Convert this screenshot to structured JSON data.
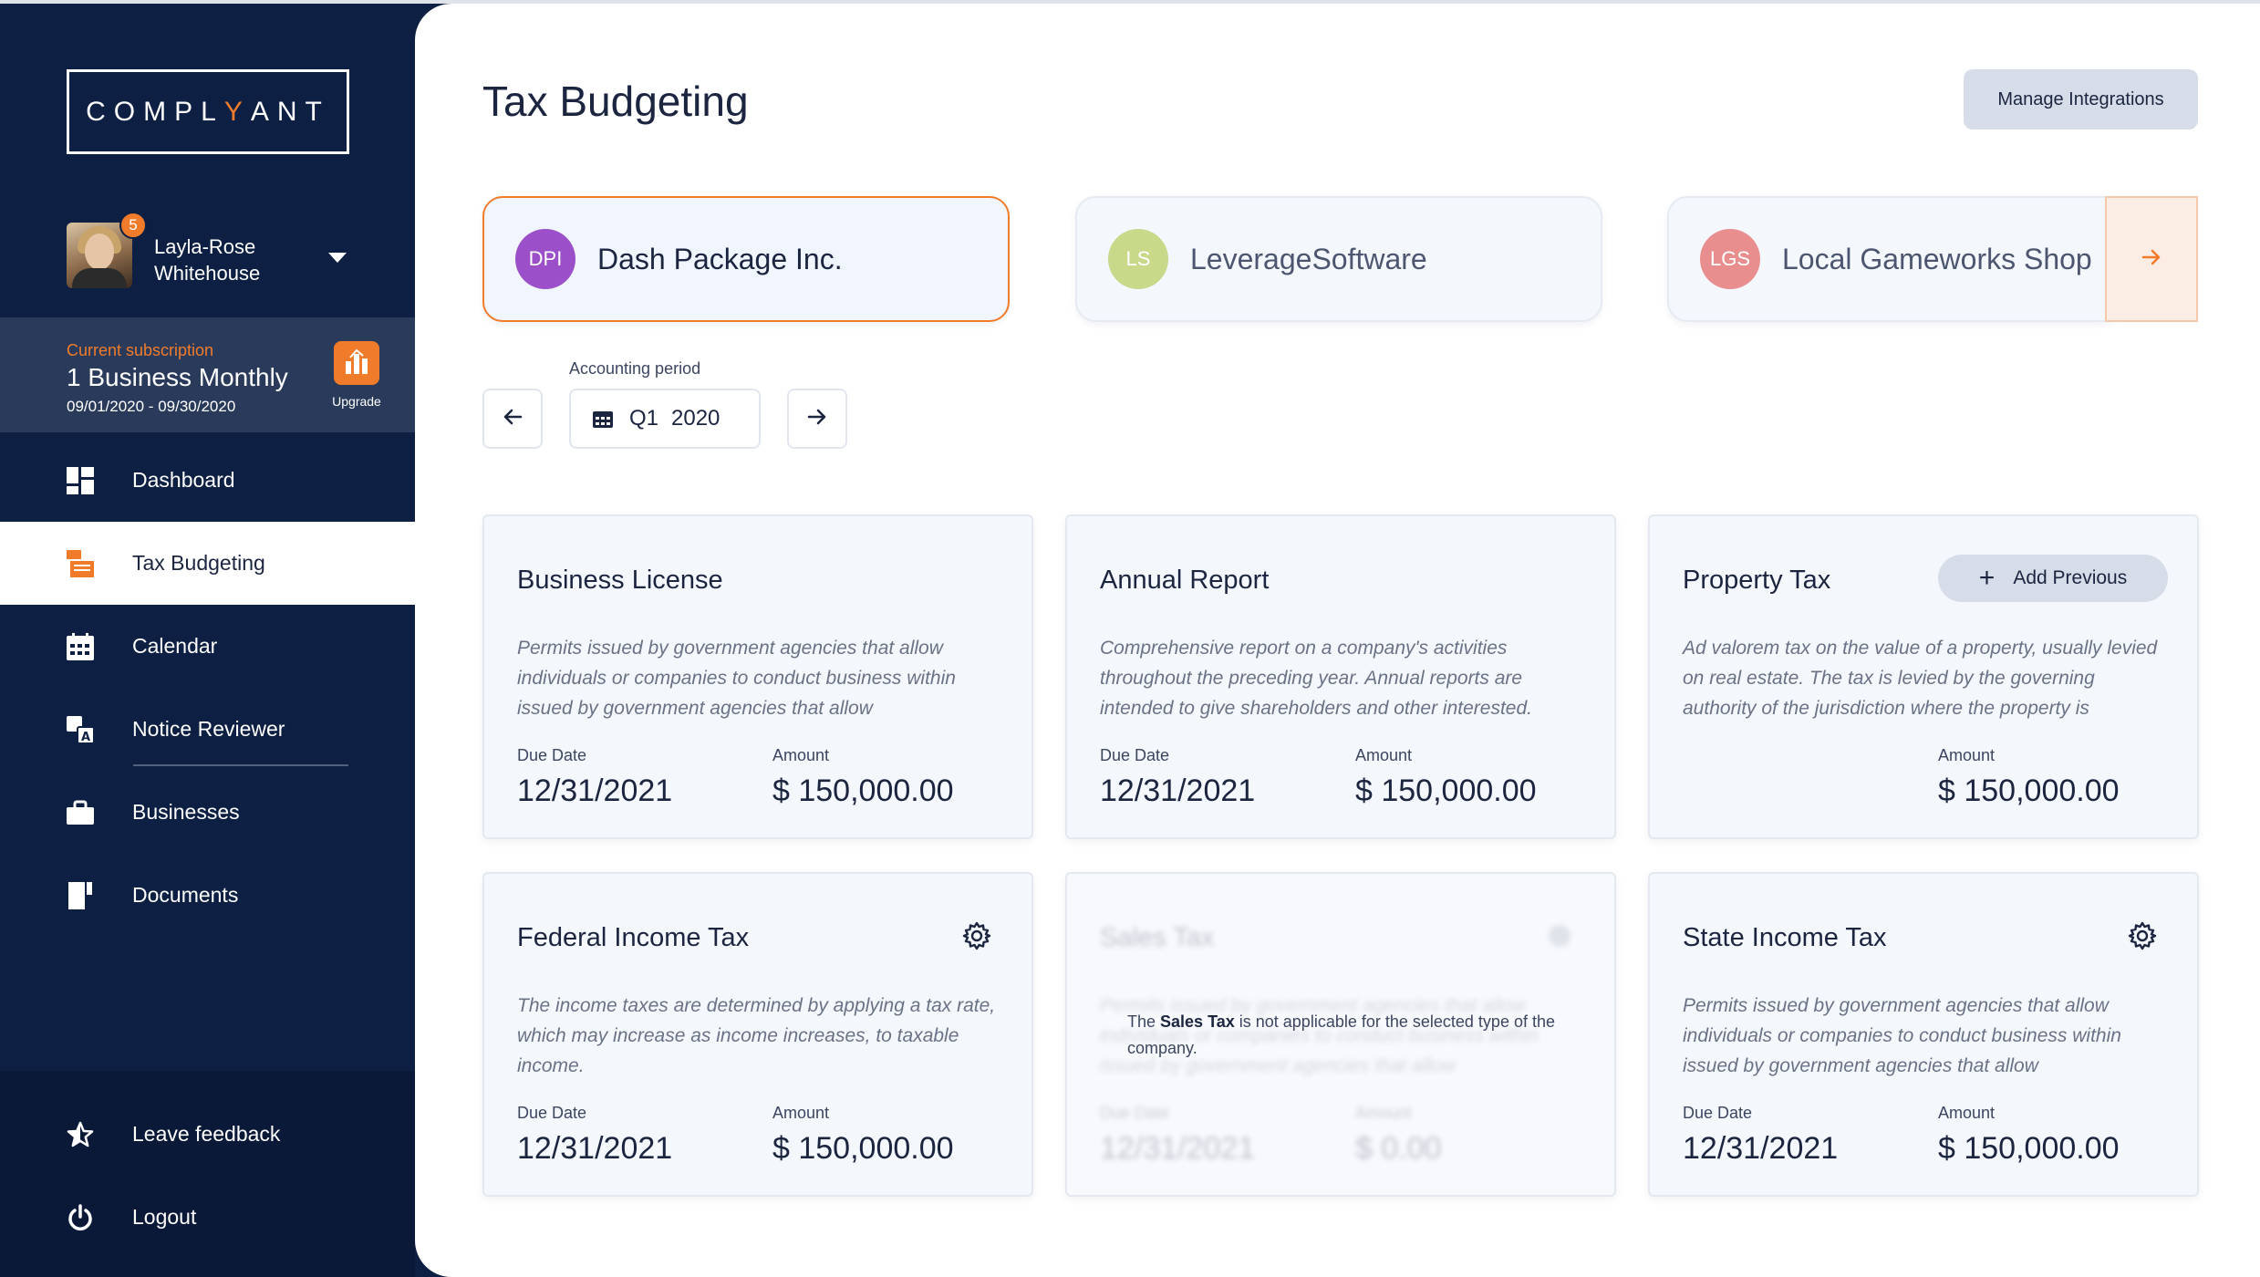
{
  "brand": {
    "prefix": "COMPL",
    "accent_letter": "Y",
    "suffix": "ANT",
    "accent_color": "#f07c2b"
  },
  "user": {
    "name": "Layla-Rose Whitehouse",
    "notification_count": "5"
  },
  "subscription": {
    "label": "Current subscription",
    "plan": "1 Business Monthly",
    "dates": "09/01/2020 - 09/30/2020",
    "upgrade_label": "Upgrade"
  },
  "nav": {
    "items": [
      {
        "label": "Dashboard",
        "icon": "dashboard-icon"
      },
      {
        "label": "Tax Budgeting",
        "icon": "tax-icon",
        "active": true
      },
      {
        "label": "Calendar",
        "icon": "calendar-icon"
      },
      {
        "label": "Notice Reviewer",
        "icon": "translate-icon"
      },
      {
        "label": "Businesses",
        "icon": "briefcase-icon"
      },
      {
        "label": "Documents",
        "icon": "documents-icon"
      }
    ],
    "bottom": [
      {
        "label": "Leave feedback",
        "icon": "star-icon"
      },
      {
        "label": "Logout",
        "icon": "power-icon"
      }
    ]
  },
  "header": {
    "title": "Tax Budgeting",
    "manage_integrations": "Manage Integrations"
  },
  "businesses": [
    {
      "initials": "DPI",
      "name": "Dash Package Inc.",
      "color": "#9b4fc9",
      "selected": true
    },
    {
      "initials": "LS",
      "name": "LeverageSoftware",
      "color": "#c8d98a",
      "selected": false
    },
    {
      "initials": "LGS",
      "name": "Local Gameworks Shop",
      "color": "#e88e8e",
      "selected": false
    }
  ],
  "period": {
    "label": "Accounting period",
    "quarter": "Q1",
    "year": "2020"
  },
  "labels": {
    "due_date": "Due Date",
    "amount": "Amount",
    "add_previous": "Add Previous"
  },
  "taxes": [
    {
      "title": "Business License",
      "description": "Permits issued by government agencies that allow individuals or companies to conduct business within issued by government agencies that allow",
      "due_date": "12/31/2021",
      "amount": "$ 150,000.00"
    },
    {
      "title": "Annual Report",
      "description": "Comprehensive report on a company's activities throughout the preceding year. Annual reports are intended to give shareholders and other interested.",
      "due_date": "12/31/2021",
      "amount": "$ 150,000.00"
    },
    {
      "title": "Property Tax",
      "description": "Ad valorem tax on the value of a property, usually levied on real estate. The tax is levied by the governing authority of the jurisdiction where the property is",
      "amount": "$ 150,000.00"
    },
    {
      "title": "Federal Income Tax",
      "description": "The income taxes are determined by applying a tax rate, which may increase as income increases, to taxable income.",
      "due_date": "12/31/2021",
      "amount": "$ 150,000.00"
    },
    {
      "title": "Sales Tax",
      "description": "Permits issued by government agencies that allow individuals or companies to conduct business within issued by government agencies that allow",
      "due_date": "12/31/2021",
      "amount": "$ 0.00",
      "note_prefix": "The ",
      "note_bold": "Sales Tax",
      "note_suffix": " is not applicable for the selected type of the company."
    },
    {
      "title": "State Income Tax",
      "description": "Permits issued by government agencies that allow individuals or companies to conduct business within issued by government agencies that allow",
      "due_date": "12/31/2021",
      "amount": "$ 150,000.00"
    }
  ]
}
